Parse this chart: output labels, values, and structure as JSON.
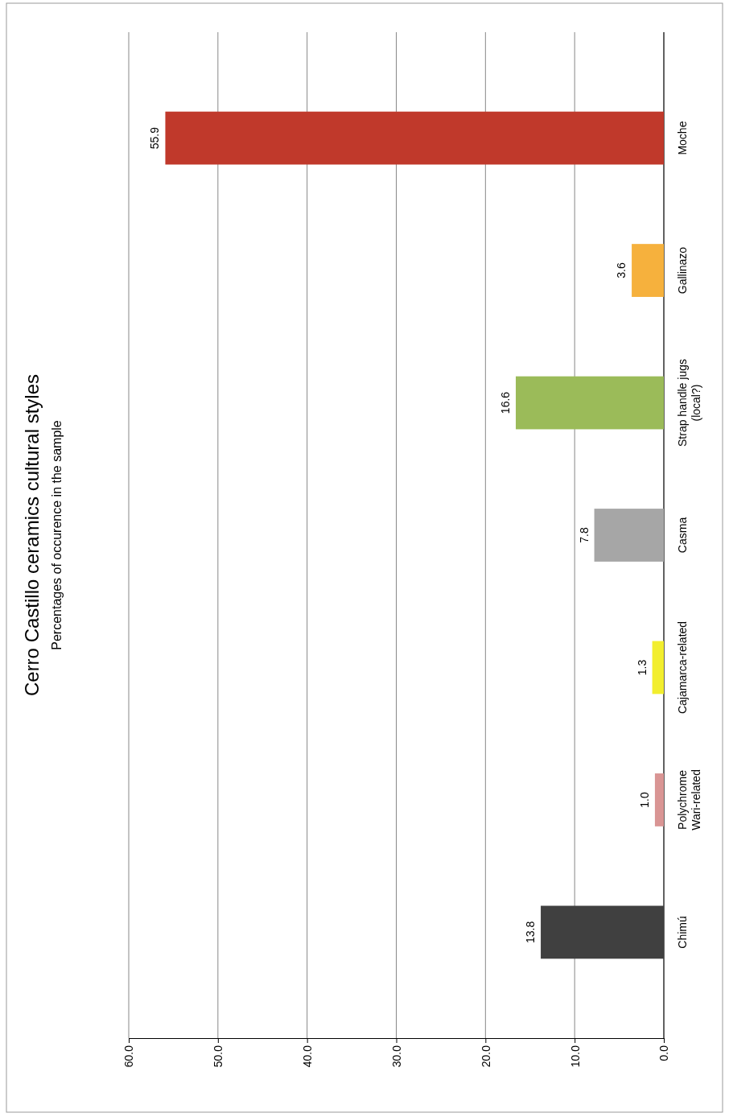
{
  "chart_data": {
    "type": "bar",
    "orientation": "horizontal",
    "title": "Cerro Castillo ceramics cultural styles",
    "subtitle": "Percentages of occurence in the sample",
    "categories": [
      "Moche",
      "Gallinazo",
      "Strap handle jugs (local?)",
      "Casma",
      "Cajamarca-related",
      "Polychrome Wari-related",
      "Chimú"
    ],
    "values": [
      55.9,
      3.6,
      16.6,
      7.8,
      1.3,
      1.0,
      13.8
    ],
    "colors": [
      "#c0392b",
      "#f6b13d",
      "#9bbb59",
      "#a6a6a6",
      "#f2ee2e",
      "#d99594",
      "#404040"
    ],
    "value_labels": [
      "55.9",
      "3.6",
      "16.6",
      "7.8",
      "1.3",
      "1.0",
      "13.8"
    ],
    "xlim": [
      60,
      0
    ],
    "xticks": [
      {
        "value": 60,
        "label": "60.0"
      },
      {
        "value": 50,
        "label": "50.0"
      },
      {
        "value": 40,
        "label": "40.0"
      },
      {
        "value": 30,
        "label": "30.0"
      },
      {
        "value": 20,
        "label": "20.0"
      },
      {
        "value": 10,
        "label": "10.0"
      },
      {
        "value": 0,
        "label": "0.0"
      }
    ],
    "grid": true
  }
}
